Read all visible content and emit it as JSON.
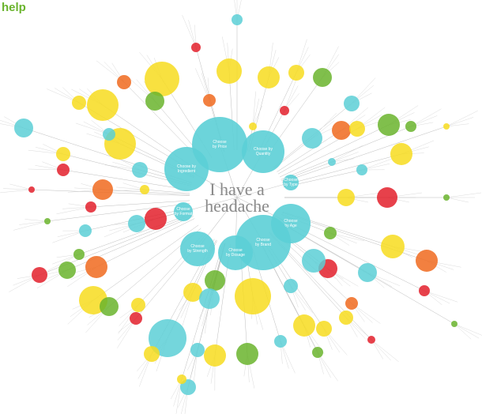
{
  "header": {
    "title": "help"
  },
  "center": {
    "lines": [
      "I have a",
      "headache"
    ]
  },
  "nodes": [
    {
      "label": [
        "Choose",
        "by Price"
      ]
    },
    {
      "label": [
        "Choose by",
        "Ingredient"
      ]
    },
    {
      "label": [
        "Choose by",
        "Quantity"
      ]
    },
    {
      "label": [
        "Choose",
        "by Format"
      ]
    },
    {
      "label": [
        "Choose",
        "by Age"
      ]
    },
    {
      "label": [
        "Choose",
        "by Brand"
      ]
    },
    {
      "label": [
        "Choose",
        "by Dosage"
      ]
    },
    {
      "label": [
        "Choose",
        "by Strength"
      ]
    },
    {
      "label": [
        "Choose",
        "by Type"
      ]
    }
  ]
}
